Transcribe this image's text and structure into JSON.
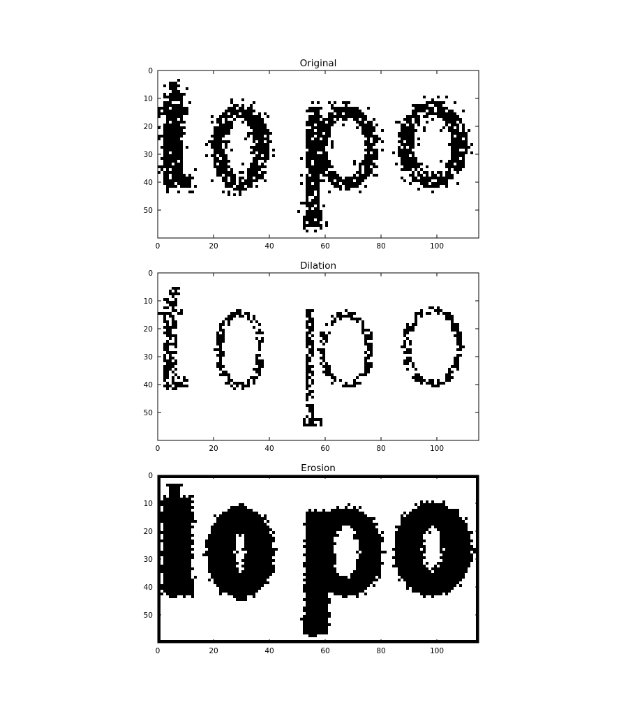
{
  "chart_data": [
    {
      "type": "heatmap",
      "title": "Original",
      "colormap": "binary",
      "colors": {
        "foreground": "#000000",
        "background": "#ffffff"
      },
      "image_shape": [
        60,
        115
      ],
      "xlim": [
        0,
        115
      ],
      "ylim": [
        60,
        0
      ],
      "x_ticks": [
        0,
        20,
        40,
        60,
        80,
        100
      ],
      "y_ticks": [
        0,
        10,
        20,
        30,
        40,
        50
      ],
      "x_tick_labels": [
        "0",
        "20",
        "40",
        "60",
        "80",
        "100"
      ],
      "y_tick_labels": [
        "0",
        "10",
        "20",
        "30",
        "40",
        "50"
      ],
      "grid": false,
      "content_text": "topo",
      "rendition": "noisy"
    },
    {
      "type": "heatmap",
      "title": "Dilation",
      "colormap": "binary",
      "colors": {
        "foreground": "#000000",
        "background": "#ffffff"
      },
      "image_shape": [
        60,
        115
      ],
      "xlim": [
        0,
        115
      ],
      "ylim": [
        60,
        0
      ],
      "x_ticks": [
        0,
        20,
        40,
        60,
        80,
        100
      ],
      "y_ticks": [
        0,
        10,
        20,
        30,
        40,
        50
      ],
      "x_tick_labels": [
        "0",
        "20",
        "40",
        "60",
        "80",
        "100"
      ],
      "y_tick_labels": [
        "0",
        "10",
        "20",
        "30",
        "40",
        "50"
      ],
      "grid": false,
      "content_text": "topo",
      "rendition": "thin"
    },
    {
      "type": "heatmap",
      "title": "Erosion",
      "colormap": "binary",
      "colors": {
        "foreground": "#000000",
        "background": "#ffffff"
      },
      "image_shape": [
        60,
        115
      ],
      "xlim": [
        0,
        115
      ],
      "ylim": [
        60,
        0
      ],
      "x_ticks": [
        0,
        20,
        40,
        60,
        80,
        100
      ],
      "y_ticks": [
        0,
        10,
        20,
        30,
        40,
        50
      ],
      "x_tick_labels": [
        "0",
        "20",
        "40",
        "60",
        "80",
        "100"
      ],
      "y_tick_labels": [
        "0",
        "10",
        "20",
        "30",
        "40",
        "50"
      ],
      "grid": false,
      "content_text": "topo",
      "rendition": "thick"
    }
  ]
}
